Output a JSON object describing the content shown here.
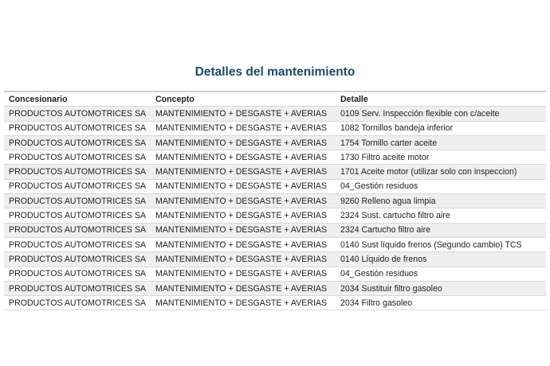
{
  "title": "Detalles del mantenimiento",
  "table": {
    "headers": [
      "Concesionario",
      "Concepto",
      "Detalle"
    ],
    "rows": [
      [
        "PRODUCTOS AUTOMOTRICES SA",
        "MANTENIMIENTO + DESGASTE + AVERIAS",
        "0109 Serv. Inspección flexible con c/aceite"
      ],
      [
        "PRODUCTOS AUTOMOTRICES SA",
        "MANTENIMIENTO + DESGASTE + AVERIAS",
        "1082 Tornillos bandeja inferior"
      ],
      [
        "PRODUCTOS AUTOMOTRICES SA",
        "MANTENIMIENTO + DESGASTE + AVERIAS",
        "1754 Tornillo carter aceite"
      ],
      [
        "PRODUCTOS AUTOMOTRICES SA",
        "MANTENIMIENTO + DESGASTE + AVERIAS",
        "1730 Filtro aceite motor"
      ],
      [
        "PRODUCTOS AUTOMOTRICES SA",
        "MANTENIMIENTO + DESGASTE + AVERIAS",
        "1701 Aceite motor (utilizar solo con inspeccion)"
      ],
      [
        "PRODUCTOS AUTOMOTRICES SA",
        "MANTENIMIENTO + DESGASTE + AVERIAS",
        "04_Gestión residuos"
      ],
      [
        "PRODUCTOS AUTOMOTRICES SA",
        "MANTENIMIENTO + DESGASTE + AVERIAS",
        "9260 Relleno agua limpia"
      ],
      [
        "PRODUCTOS AUTOMOTRICES SA",
        "MANTENIMIENTO + DESGASTE + AVERIAS",
        "2324 Sust. cartucho filtro aire"
      ],
      [
        "PRODUCTOS AUTOMOTRICES SA",
        "MANTENIMIENTO + DESGASTE + AVERIAS",
        "2324 Cartucho filtro aire"
      ],
      [
        "PRODUCTOS AUTOMOTRICES SA",
        "MANTENIMIENTO + DESGASTE + AVERIAS",
        "0140 Sust líquido frenos (Segundo cambio) TCS"
      ],
      [
        "PRODUCTOS AUTOMOTRICES SA",
        "MANTENIMIENTO + DESGASTE + AVERIAS",
        "0140 Líquido de frenos"
      ],
      [
        "PRODUCTOS AUTOMOTRICES SA",
        "MANTENIMIENTO + DESGASTE + AVERIAS",
        "04_Gestión residuos"
      ],
      [
        "PRODUCTOS AUTOMOTRICES SA",
        "MANTENIMIENTO + DESGASTE + AVERIAS",
        "2034 Sustituir filtro gasoleo"
      ],
      [
        "PRODUCTOS AUTOMOTRICES SA",
        "MANTENIMIENTO + DESGASTE + AVERIAS",
        "2034 Filtro gasoleo"
      ]
    ]
  },
  "colors": {
    "title": "#1d4b63",
    "stripe": "#efefef"
  }
}
